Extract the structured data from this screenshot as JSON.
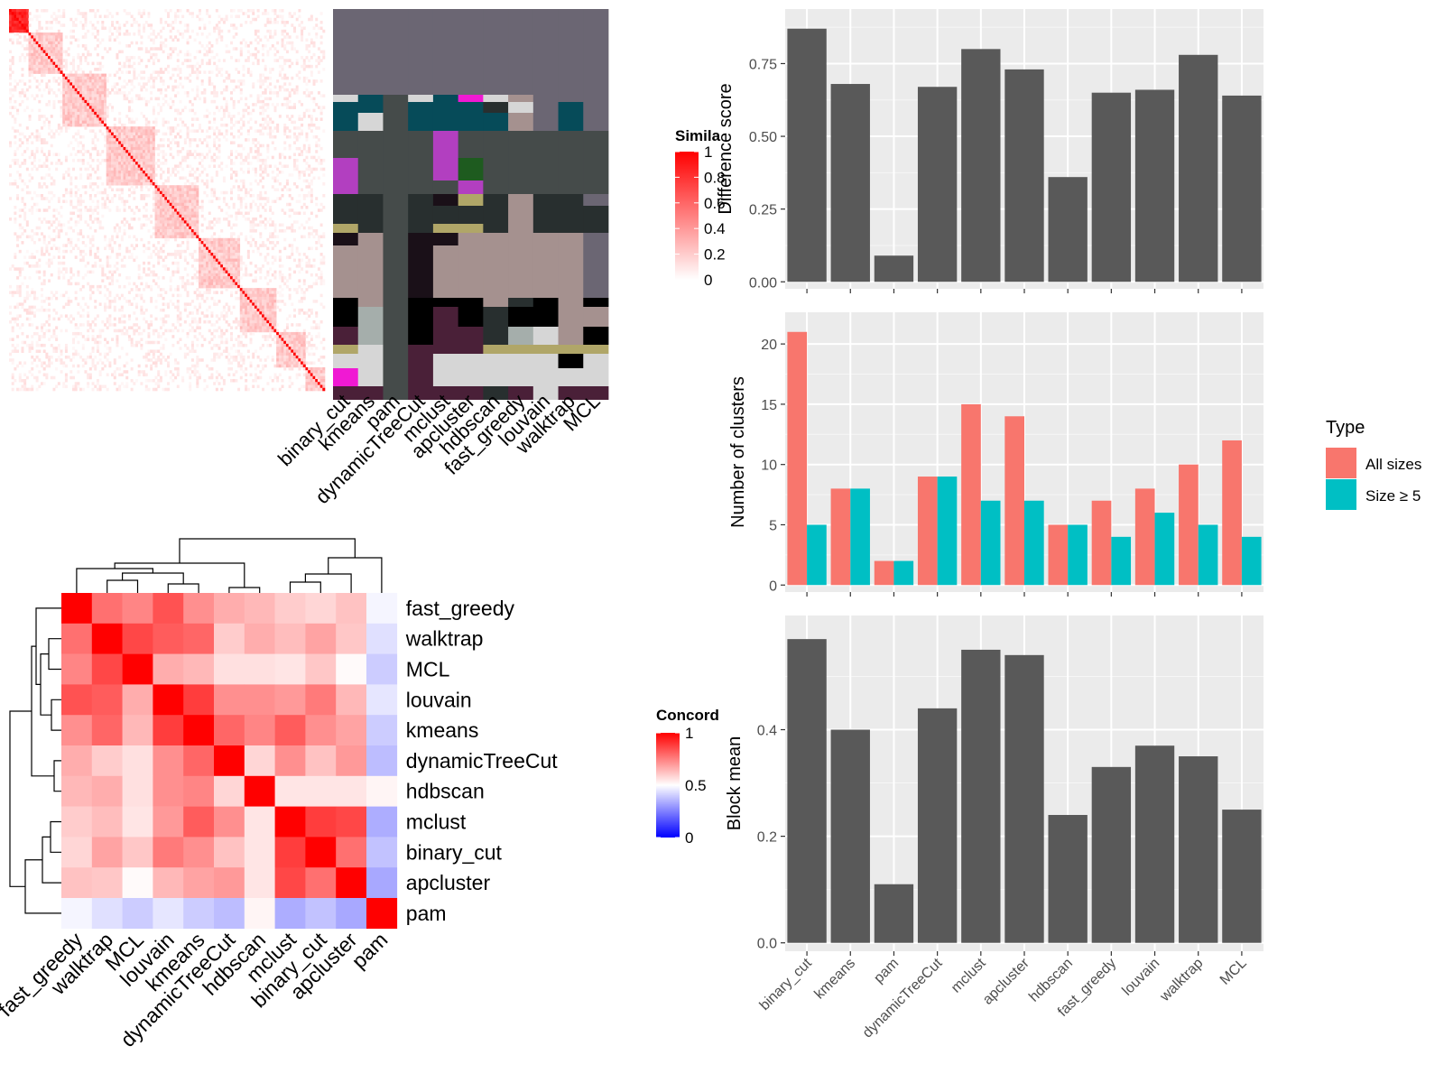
{
  "methods": [
    "binary_cut",
    "kmeans",
    "pam",
    "dynamicTreeCut",
    "mclust",
    "apcluster",
    "hdbscan",
    "fast_greedy",
    "louvain",
    "walktrap",
    "MCL"
  ],
  "similarity_legend": {
    "title": "Simila",
    "ticks": [
      "1",
      "0.8",
      "0.6",
      "0.4",
      "0.2",
      "0"
    ],
    "colors": {
      "high": "#ff0000",
      "low": "#ffffff"
    }
  },
  "concordance_legend": {
    "title": "Concord",
    "ticks": [
      "1",
      "0.5",
      "0"
    ],
    "colors": {
      "high": "#ff0000",
      "mid": "#ffffff",
      "low": "#0000ff"
    }
  },
  "concordance_order": [
    "fast_greedy",
    "walktrap",
    "MCL",
    "louvain",
    "kmeans",
    "dynamicTreeCut",
    "hdbscan",
    "mclust",
    "binary_cut",
    "apcluster",
    "pam"
  ],
  "concordance_matrix": [
    [
      1.0,
      0.78,
      0.74,
      0.84,
      0.72,
      0.66,
      0.64,
      0.6,
      0.58,
      0.62,
      0.48
    ],
    [
      0.78,
      1.0,
      0.86,
      0.82,
      0.8,
      0.6,
      0.66,
      0.63,
      0.68,
      0.61,
      0.44
    ],
    [
      0.74,
      0.86,
      1.0,
      0.66,
      0.64,
      0.56,
      0.56,
      0.55,
      0.61,
      0.51,
      0.4
    ],
    [
      0.84,
      0.82,
      0.66,
      1.0,
      0.88,
      0.72,
      0.72,
      0.7,
      0.76,
      0.64,
      0.45
    ],
    [
      0.72,
      0.8,
      0.64,
      0.88,
      1.0,
      0.8,
      0.74,
      0.82,
      0.72,
      0.68,
      0.4
    ],
    [
      0.66,
      0.6,
      0.56,
      0.72,
      0.8,
      1.0,
      0.58,
      0.72,
      0.62,
      0.7,
      0.37
    ],
    [
      0.64,
      0.66,
      0.56,
      0.72,
      0.74,
      0.58,
      1.0,
      0.55,
      0.55,
      0.55,
      0.52
    ],
    [
      0.6,
      0.63,
      0.55,
      0.7,
      0.82,
      0.72,
      0.55,
      1.0,
      0.88,
      0.86,
      0.34
    ],
    [
      0.58,
      0.68,
      0.61,
      0.76,
      0.72,
      0.62,
      0.55,
      0.88,
      1.0,
      0.78,
      0.38
    ],
    [
      0.62,
      0.61,
      0.51,
      0.64,
      0.68,
      0.7,
      0.55,
      0.86,
      0.78,
      1.0,
      0.33
    ],
    [
      0.48,
      0.44,
      0.4,
      0.45,
      0.4,
      0.37,
      0.52,
      0.34,
      0.38,
      0.33,
      1.0
    ]
  ],
  "chart_data": [
    {
      "type": "bar",
      "categories": [
        "binary_cut",
        "kmeans",
        "pam",
        "dynamicTreeCut",
        "mclust",
        "apcluster",
        "hdbscan",
        "fast_greedy",
        "louvain",
        "walktrap",
        "MCL"
      ],
      "values": [
        0.87,
        0.68,
        0.09,
        0.67,
        0.8,
        0.73,
        0.36,
        0.65,
        0.66,
        0.78,
        0.64
      ],
      "title": "",
      "xlabel": "",
      "ylabel": "Difference score",
      "ylim": [
        0,
        0.87
      ],
      "yticks": [
        0.0,
        0.25,
        0.5,
        0.75
      ],
      "ytick_labels": [
        "0.00",
        "0.25",
        "0.50",
        "0.75"
      ],
      "grid": true,
      "bar_color": "#595959"
    },
    {
      "type": "bar",
      "categories": [
        "binary_cut",
        "kmeans",
        "pam",
        "dynamicTreeCut",
        "mclust",
        "apcluster",
        "hdbscan",
        "fast_greedy",
        "louvain",
        "walktrap",
        "MCL"
      ],
      "series": [
        {
          "name": "All sizes",
          "values": [
            21,
            8,
            2,
            9,
            15,
            14,
            5,
            7,
            8,
            10,
            12
          ],
          "color": "#f8766d"
        },
        {
          "name": "Size ≥ 5",
          "values": [
            5,
            8,
            2,
            9,
            7,
            7,
            5,
            4,
            6,
            5,
            4
          ],
          "color": "#00bfc4"
        }
      ],
      "title": "",
      "xlabel": "",
      "ylabel": "Number of clusters",
      "ylim": [
        0,
        21
      ],
      "yticks": [
        0,
        5,
        10,
        15,
        20
      ],
      "ytick_labels": [
        "0",
        "5",
        "10",
        "15",
        "20"
      ],
      "legend_title": "Type",
      "legend_position": "right",
      "grid": true
    },
    {
      "type": "bar",
      "categories": [
        "binary_cut",
        "kmeans",
        "pam",
        "dynamicTreeCut",
        "mclust",
        "apcluster",
        "hdbscan",
        "fast_greedy",
        "louvain",
        "walktrap",
        "MCL"
      ],
      "values": [
        0.57,
        0.4,
        0.11,
        0.44,
        0.55,
        0.54,
        0.24,
        0.33,
        0.37,
        0.35,
        0.25
      ],
      "title": "",
      "xlabel": "",
      "ylabel": "Block mean",
      "ylim": [
        0,
        0.57
      ],
      "yticks": [
        0.0,
        0.2,
        0.4
      ],
      "ytick_labels": [
        "0.0",
        "0.2",
        "0.4"
      ],
      "grid": true,
      "bar_color": "#595959"
    }
  ]
}
